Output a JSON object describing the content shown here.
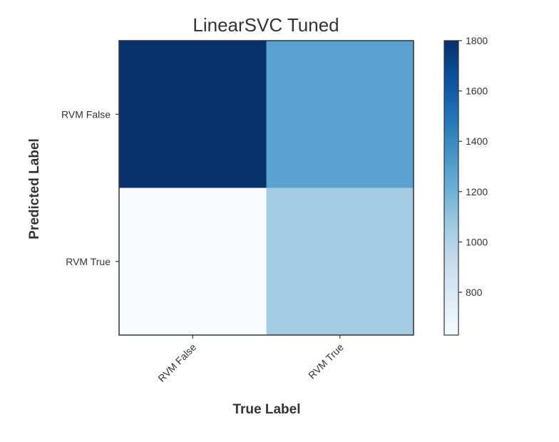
{
  "chart_data": {
    "type": "heatmap",
    "title": "LinearSVC Tuned",
    "xlabel": "True Label",
    "ylabel": "Predicted Label",
    "x_categories": [
      "RVM False",
      "RVM True"
    ],
    "y_categories": [
      "RVM False",
      "RVM True"
    ],
    "matrix": [
      [
        1800,
        1280
      ],
      [
        630,
        1050
      ]
    ],
    "colormap": "Blues",
    "colorbar": {
      "range": [
        630,
        1800
      ],
      "ticks": [
        800,
        1000,
        1200,
        1400,
        1600,
        1800
      ]
    },
    "grid": false,
    "legend": "colorbar-right"
  }
}
